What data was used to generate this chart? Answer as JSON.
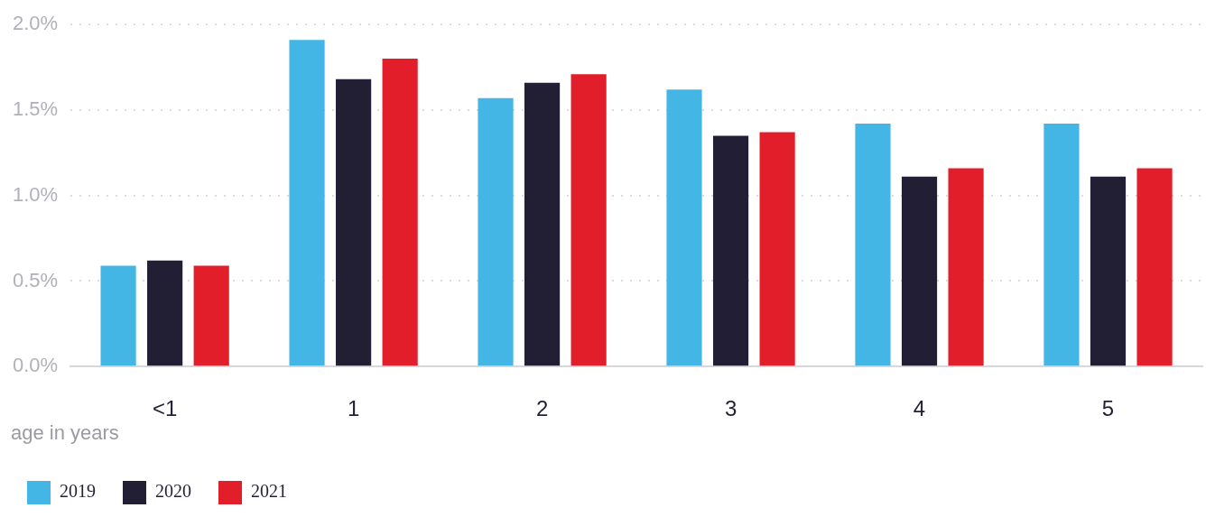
{
  "chart_data": {
    "type": "bar",
    "xlabel": "age in years",
    "categories": [
      "<1",
      "1",
      "2",
      "3",
      "4",
      "5"
    ],
    "series": [
      {
        "name": "2019",
        "color": "#44b6e5",
        "values": [
          0.59,
          1.91,
          1.57,
          1.62,
          1.42,
          1.42
        ]
      },
      {
        "name": "2020",
        "color": "#221e33",
        "values": [
          0.62,
          1.68,
          1.66,
          1.35,
          1.11,
          1.11
        ]
      },
      {
        "name": "2021",
        "color": "#e31e2b",
        "values": [
          0.59,
          1.8,
          1.71,
          1.37,
          1.16,
          1.16
        ]
      }
    ],
    "ylim": [
      0,
      2
    ],
    "yticks": [
      {
        "value": 0,
        "label": "0.0%"
      },
      {
        "value": 0.5,
        "label": "0.5%"
      },
      {
        "value": 1,
        "label": "1.0%"
      },
      {
        "value": 1.5,
        "label": "1.5%"
      },
      {
        "value": 2,
        "label": "2.0%"
      }
    ],
    "grid": "y",
    "legend": "bottom left"
  }
}
